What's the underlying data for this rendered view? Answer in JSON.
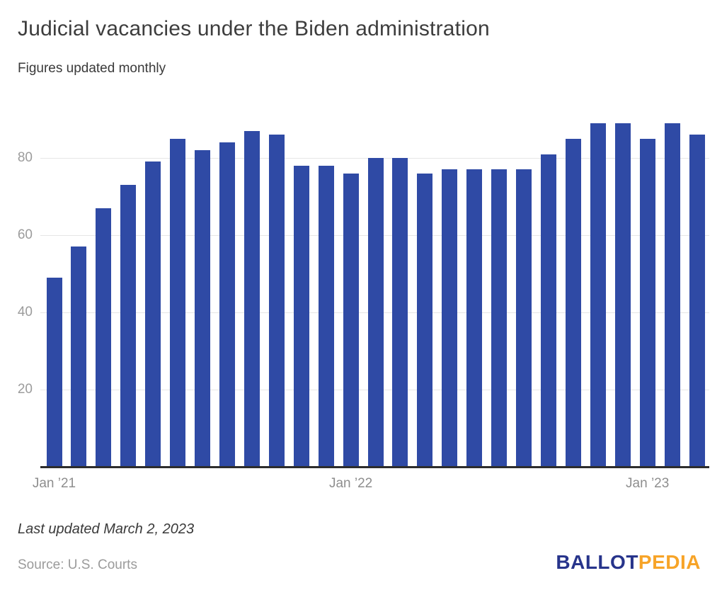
{
  "title": "Judicial vacancies under the Biden administration",
  "subtitle": "Figures updated monthly",
  "footer": {
    "last_updated": "Last updated March 2, 2023",
    "source": "Source: U.S. Courts",
    "logo": {
      "part1": "BALLOT",
      "part2": "PEDIA"
    }
  },
  "colors": {
    "bar": "#2f4aa5",
    "gridline": "#e6e6e6",
    "axis_line": "#2d2d2d",
    "y_tick_label": "#9c9c9c",
    "x_tick_label": "#8e8e8e",
    "logo_blue": "#27348b",
    "logo_orange": "#f7a428"
  },
  "chart_data": {
    "type": "bar",
    "title": "Judicial vacancies under the Biden administration",
    "subtitle": "Figures updated monthly",
    "xlabel": "",
    "ylabel": "",
    "categories": [
      "Jan 2021",
      "Feb 2021",
      "Mar 2021",
      "Apr 2021",
      "May 2021",
      "Jun 2021",
      "Jul 2021",
      "Aug 2021",
      "Sep 2021",
      "Oct 2021",
      "Nov 2021",
      "Dec 2021",
      "Jan 2022",
      "Feb 2022",
      "Mar 2022",
      "Apr 2022",
      "May 2022",
      "Jun 2022",
      "Jul 2022",
      "Aug 2022",
      "Sep 2022",
      "Oct 2022",
      "Nov 2022",
      "Dec 2022",
      "Jan 2023",
      "Feb 2023",
      "Mar 2023"
    ],
    "values": [
      49,
      57,
      67,
      73,
      79,
      85,
      82,
      84,
      87,
      86,
      78,
      78,
      76,
      80,
      80,
      76,
      77,
      77,
      77,
      77,
      81,
      85,
      89,
      89,
      85,
      89,
      86
    ],
    "y_ticks": [
      20,
      40,
      60,
      80
    ],
    "x_tick_labels": [
      {
        "index": 0,
        "label": "Jan ’21"
      },
      {
        "index": 12,
        "label": "Jan ’22"
      },
      {
        "index": 24,
        "label": "Jan ’23"
      }
    ],
    "ylim": [
      0,
      93
    ],
    "grid": "horizontal",
    "legend": "none"
  }
}
